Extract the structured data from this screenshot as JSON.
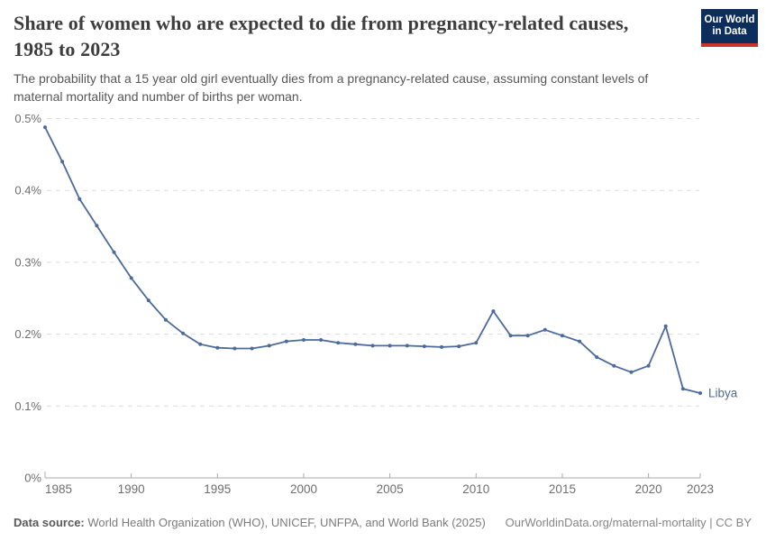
{
  "header": {
    "title": "Share of women who are expected to die from pregnancy-related causes, 1985 to 2023",
    "subtitle": "The probability that a 15 year old girl eventually dies from a pregnancy-related cause, assuming constant levels of maternal mortality and number of births per woman.",
    "logo": {
      "line1": "Our World",
      "line2": "in Data"
    }
  },
  "footer": {
    "source_label": "Data source:",
    "source_text": "World Health Organization (WHO), UNICEF, UNFPA, and World Bank (2025)",
    "link_text": "OurWorldinData.org/maternal-mortality | CC BY"
  },
  "colors": {
    "accent": "#4C6A9C",
    "gridline": "#dcdcdc",
    "axis": "#a8a8a8",
    "tick_label": "#6e6e6e",
    "logo_bg": "#0d2e5c",
    "logo_red": "#c9342b"
  },
  "chart_data": {
    "type": "line",
    "title": "Share of women who are expected to die from pregnancy-related causes, 1985 to 2023",
    "xlabel": "",
    "ylabel": "",
    "unit": "%",
    "grid": true,
    "ylim": [
      0,
      0.5
    ],
    "yticks": {
      "values": [
        0,
        0.1,
        0.2,
        0.3,
        0.4,
        0.5
      ],
      "labels": [
        "0%",
        "0.1%",
        "0.2%",
        "0.3%",
        "0.4%",
        "0.5%"
      ]
    },
    "xticks": [
      1985,
      1990,
      1995,
      2000,
      2005,
      2010,
      2015,
      2020,
      2023
    ],
    "x": [
      1985,
      1986,
      1987,
      1988,
      1989,
      1990,
      1991,
      1992,
      1993,
      1994,
      1995,
      1996,
      1997,
      1998,
      1999,
      2000,
      2001,
      2002,
      2003,
      2004,
      2005,
      2006,
      2007,
      2008,
      2009,
      2010,
      2011,
      2012,
      2013,
      2014,
      2015,
      2016,
      2017,
      2018,
      2019,
      2020,
      2021,
      2022,
      2023
    ],
    "series": [
      {
        "name": "Libya",
        "color": "#4C6A9C",
        "values": [
          0.488,
          0.44,
          0.388,
          0.351,
          0.314,
          0.278,
          0.247,
          0.22,
          0.201,
          0.186,
          0.181,
          0.18,
          0.18,
          0.184,
          0.19,
          0.192,
          0.192,
          0.188,
          0.186,
          0.184,
          0.184,
          0.184,
          0.183,
          0.182,
          0.183,
          0.188,
          0.232,
          0.198,
          0.198,
          0.206,
          0.198,
          0.19,
          0.168,
          0.156,
          0.147,
          0.156,
          0.211,
          0.124,
          0.118
        ]
      }
    ],
    "end_label": "Libya"
  }
}
